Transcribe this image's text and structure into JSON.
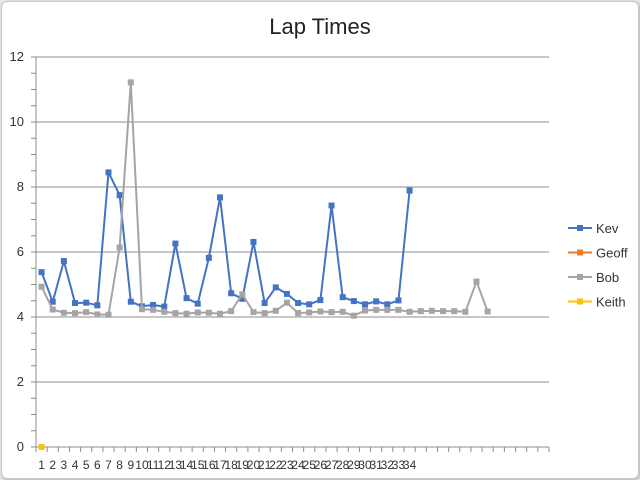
{
  "chart_data": {
    "type": "line",
    "title": "Lap Times",
    "xlabel": "",
    "ylabel": "",
    "ylim": [
      0,
      12
    ],
    "yticks": [
      0,
      2,
      4,
      6,
      8,
      10,
      12
    ],
    "x_tick_labels": [
      "1",
      "2",
      "3",
      "4",
      "5",
      "6",
      "7",
      "8",
      "9",
      "10",
      "11",
      "12",
      "13",
      "14",
      "15",
      "16",
      "17",
      "18",
      "19",
      "20",
      "21",
      "22",
      "23",
      "24",
      "25",
      "26",
      "27",
      "28",
      "29",
      "30",
      "31",
      "32",
      "33",
      "34"
    ],
    "x_count": 46,
    "grid": "horizontal",
    "legend_position": "right",
    "series": [
      {
        "name": "Kev",
        "color": "#4472c4",
        "marker": "square",
        "values": [
          5.38,
          4.47,
          5.72,
          4.43,
          4.44,
          4.36,
          8.45,
          7.75,
          4.47,
          4.33,
          4.37,
          4.32,
          6.26,
          4.58,
          4.41,
          5.82,
          7.68,
          4.73,
          4.56,
          6.31,
          4.43,
          4.91,
          4.71,
          4.43,
          4.39,
          4.52,
          7.43,
          4.61,
          4.49,
          4.39,
          4.48,
          4.39,
          4.51,
          7.89
        ]
      },
      {
        "name": "Geoff",
        "color": "#ed7d31",
        "marker": "square",
        "values": []
      },
      {
        "name": "Bob",
        "color": "#a5a5a5",
        "marker": "square",
        "values": [
          4.93,
          4.23,
          4.13,
          4.12,
          4.15,
          4.08,
          4.07,
          6.14,
          11.22,
          4.24,
          4.22,
          4.16,
          4.12,
          4.1,
          4.14,
          4.13,
          4.1,
          4.18,
          4.7,
          4.15,
          4.12,
          4.19,
          4.44,
          4.12,
          4.14,
          4.17,
          4.15,
          4.16,
          4.04,
          4.2,
          4.22,
          4.22,
          4.22,
          4.16,
          4.18,
          4.19,
          4.18,
          4.18,
          4.16,
          5.09,
          4.17
        ]
      },
      {
        "name": "Keith",
        "color": "#ffc000",
        "marker": "square",
        "values": [
          0
        ]
      }
    ]
  }
}
